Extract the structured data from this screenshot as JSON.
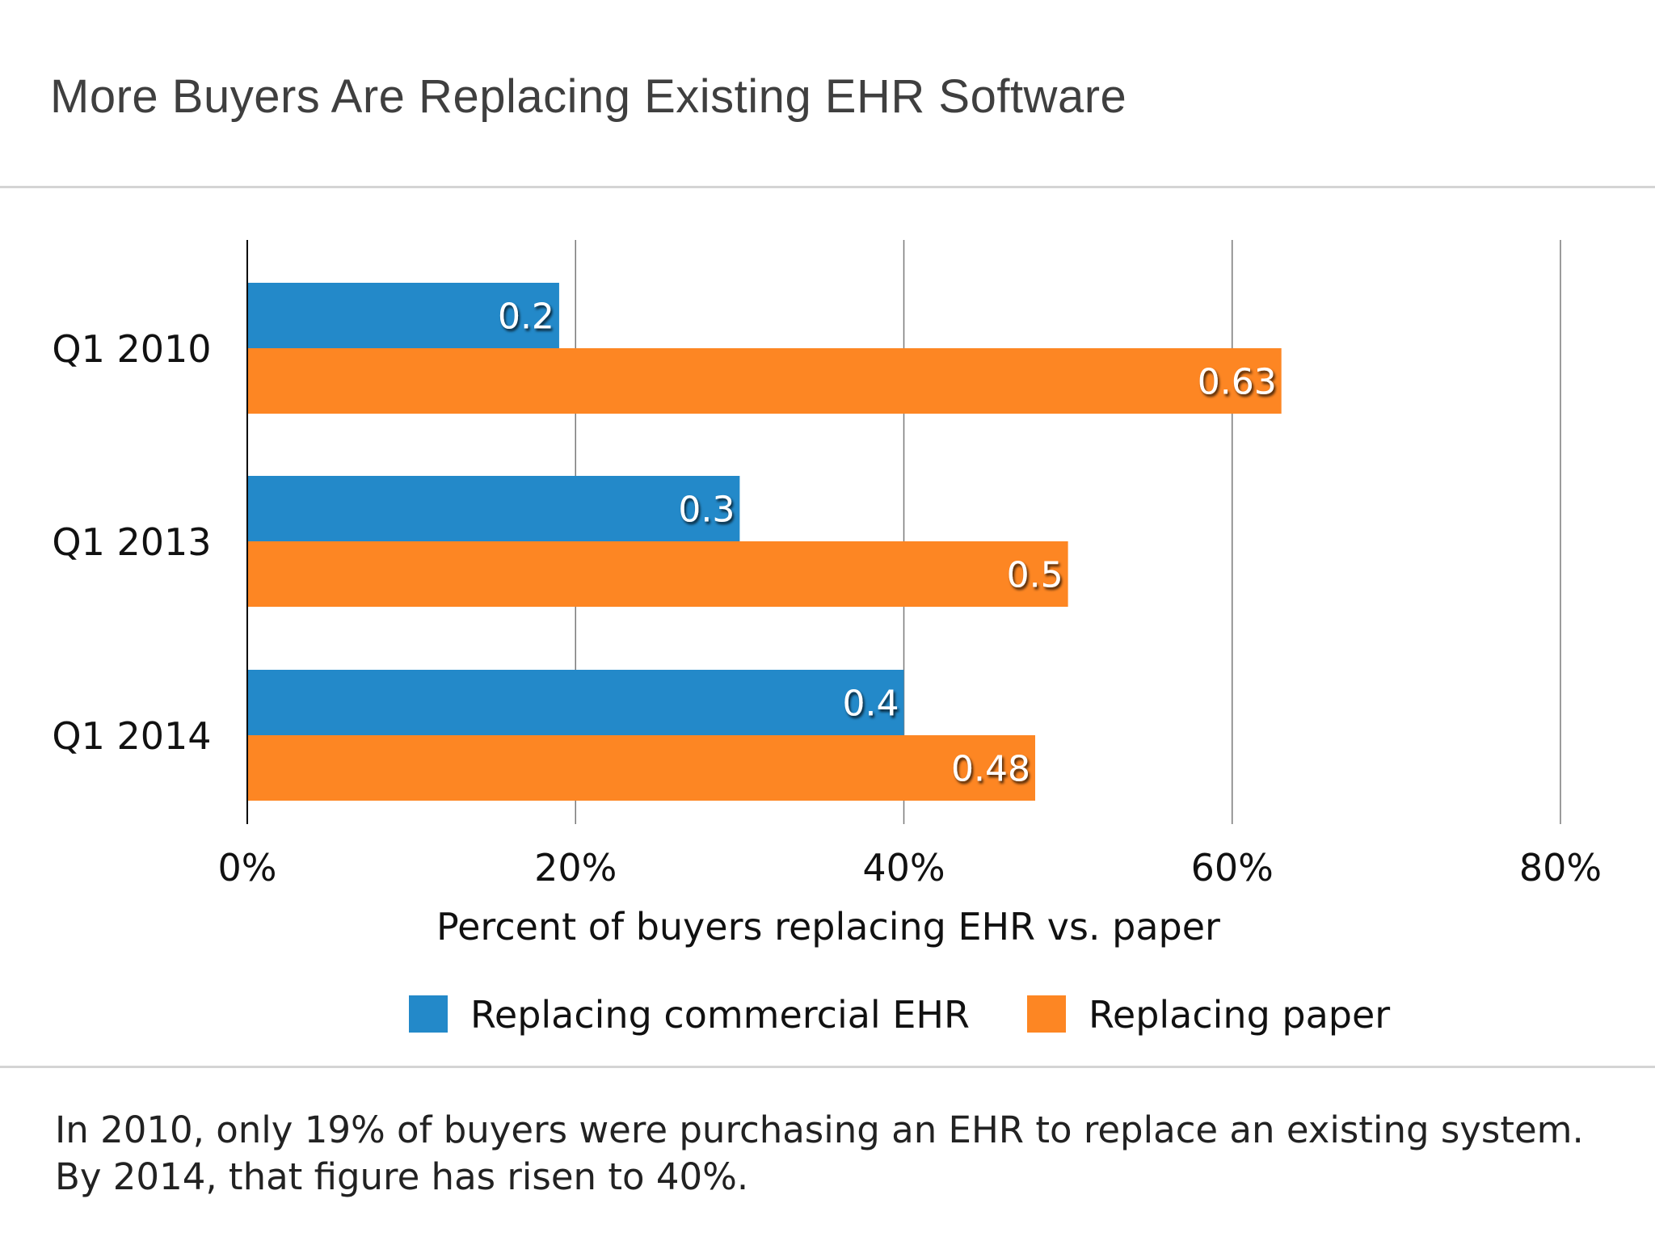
{
  "title": "More Buyers Are Replacing Existing EHR Software",
  "caption": "In 2010, only 19% of buyers were purchasing an EHR to replace an existing system. By 2014, that figure has risen to 40%.",
  "colors": {
    "commercial": "#2389c9",
    "paper": "#fd8623",
    "grid": "#7a7a7a",
    "axis": "#000000"
  },
  "legend": [
    {
      "label": "Replacing commercial EHR",
      "color": "#2389c9"
    },
    {
      "label": "Replacing paper",
      "color": "#fd8623"
    }
  ],
  "chart_data": {
    "type": "bar",
    "orientation": "horizontal",
    "categories": [
      "Q1 2010",
      "Q1 2013",
      "Q1 2014"
    ],
    "series": [
      {
        "name": "Replacing commercial EHR",
        "values": [
          0.19,
          0.3,
          0.4
        ],
        "data_labels": [
          "0.2",
          "0.3",
          "0.4"
        ],
        "color": "#2389c9"
      },
      {
        "name": "Replacing paper",
        "values": [
          0.63,
          0.5,
          0.48
        ],
        "data_labels": [
          "0.63",
          "0.5",
          "0.48"
        ],
        "color": "#fd8623"
      }
    ],
    "xlabel": "Percent of buyers replacing EHR vs. paper",
    "ylabel": "",
    "xlim": [
      0,
      0.8
    ],
    "xticks": [
      0,
      0.2,
      0.4,
      0.6,
      0.8
    ],
    "xtick_labels": [
      "0%",
      "20%",
      "40%",
      "60%",
      "80%"
    ],
    "grid": "vertical",
    "legend_position": "bottom"
  }
}
